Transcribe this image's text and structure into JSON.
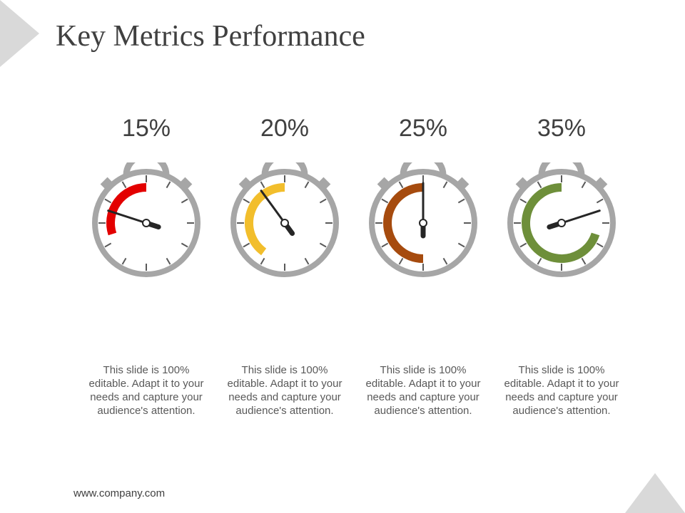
{
  "slide": {
    "title": "Key Metrics Performance",
    "footer": "www.company.com"
  },
  "colors": {
    "body": "#a6a6a6",
    "needle": "#262626",
    "corner": "#d9d9d9"
  },
  "metrics": [
    {
      "value_label": "15%",
      "percent": 15,
      "color": "#e30000",
      "caption": "This slide is 100% editable. Adapt it to your needs and capture your audience's attention."
    },
    {
      "value_label": "20%",
      "percent": 20,
      "color": "#f2be2c",
      "caption": "This slide is 100% editable. Adapt it to your needs and capture your audience's attention."
    },
    {
      "value_label": "25%",
      "percent": 25,
      "color": "#a64b0e",
      "caption": "This slide is 100% editable. Adapt it to your needs and capture your audience's attention."
    },
    {
      "value_label": "35%",
      "percent": 35,
      "color": "#6e8f3a",
      "caption": "This slide is 100% editable. Adapt it to your needs and capture your audience's attention."
    }
  ]
}
